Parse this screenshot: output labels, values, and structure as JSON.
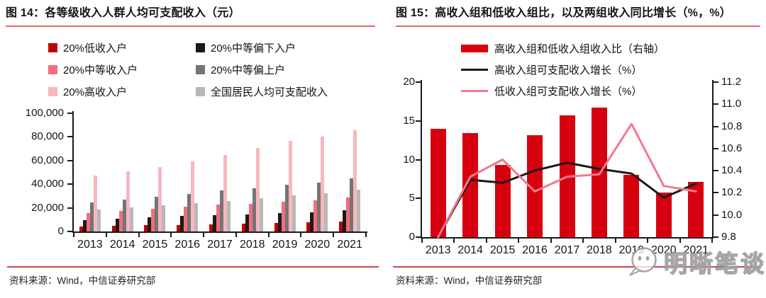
{
  "panels": {
    "left": {
      "title": "图 14：各等级收入人群人均可支配收入（元）",
      "source": "资料来源：Wind，中信证券研究部",
      "legend": [
        {
          "label": "20%低收入户",
          "color": "#c00000",
          "shape": "square"
        },
        {
          "label": "20%中等偏下入户",
          "color": "#1a1a1a",
          "shape": "square"
        },
        {
          "label": "20%中等收入户",
          "color": "#f26d7d",
          "shape": "square"
        },
        {
          "label": "20%中等偏上户",
          "color": "#757575",
          "shape": "square"
        },
        {
          "label": "20%高收入户",
          "color": "#f6b8bd",
          "shape": "square"
        },
        {
          "label": "全国居民人均可支配收入",
          "color": "#b8b8b8",
          "shape": "square"
        }
      ]
    },
    "right": {
      "title": "图 15：高收入组和低收入组比，以及两组收入同比增长（%，%）",
      "source": "资料来源：Wind，中信证券研究部",
      "legend": [
        {
          "label": "高收入组和低收入组收入比（右轴）",
          "color": "#d7000f",
          "shape": "bar"
        },
        {
          "label": "高收入组可支配收入增长（%）",
          "color": "#1a1a1a",
          "shape": "line"
        },
        {
          "label": "低收入组可支配收入增长（%）",
          "color": "#f4788c",
          "shape": "line"
        }
      ]
    }
  },
  "watermark": {
    "text": "明晰笔谈",
    "icon": "wechat-chat-bubble-icon"
  },
  "chart_data": [
    {
      "type": "bar",
      "title": "各等级收入人群人均可支配收入（元）",
      "categories": [
        "2013",
        "2014",
        "2015",
        "2016",
        "2017",
        "2018",
        "2019",
        "2020",
        "2021"
      ],
      "series": [
        {
          "name": "20%低收入户",
          "color": "#c00000",
          "values": [
            4402,
            4747,
            5221,
            5529,
            5958,
            6440,
            7380,
            7869,
            8333
          ]
        },
        {
          "name": "20%中等偏下入户",
          "color": "#1a1a1a",
          "values": [
            9654,
            10887,
            11894,
            12899,
            13843,
            14361,
            15777,
            16443,
            17949
          ]
        },
        {
          "name": "20%中等收入户",
          "color": "#f26d7d",
          "values": [
            15698,
            17631,
            19320,
            20924,
            22495,
            23189,
            25035,
            26249,
            28567
          ]
        },
        {
          "name": "20%中等偏上户",
          "color": "#757575",
          "values": [
            24361,
            26937,
            29438,
            31990,
            34547,
            36471,
            39230,
            41172,
            44949
          ]
        },
        {
          "name": "20%高收入户",
          "color": "#f6b8bd",
          "values": [
            47457,
            50968,
            54544,
            59259,
            64934,
            70640,
            76401,
            80294,
            85836
          ]
        },
        {
          "name": "全国居民人均可支配收入",
          "color": "#b8b8b8",
          "values": [
            18311,
            20167,
            21966,
            23821,
            25974,
            28228,
            30733,
            32189,
            35128
          ]
        }
      ],
      "xlabel": "",
      "ylabel": "",
      "ylim": [
        0,
        100000
      ],
      "yticks": [
        0,
        20000,
        40000,
        60000,
        80000,
        100000
      ],
      "grid": false,
      "legend_position": "top"
    },
    {
      "type": "bar+line",
      "title": "高收入组和低收入组比，以及两组收入同比增长（%，%）",
      "categories": [
        "2013",
        "2014",
        "2015",
        "2016",
        "2017",
        "2018",
        "2019",
        "2020",
        "2021"
      ],
      "bars": {
        "name": "高收入组和低收入组收入比（右轴）",
        "axis": "right",
        "color": "#d7000f",
        "values": [
          10.78,
          10.74,
          10.45,
          10.72,
          10.9,
          10.97,
          10.36,
          10.2,
          10.3
        ]
      },
      "lines": [
        {
          "name": "高收入组可支配收入增长（%）",
          "axis": "left",
          "color": "#1a1a1a",
          "values": [
            0,
            7.4,
            7.0,
            8.6,
            9.6,
            8.8,
            8.2,
            5.1,
            6.9
          ]
        },
        {
          "name": "低收入组可支配收入增长（%）",
          "axis": "left",
          "color": "#f4788c",
          "values": [
            0,
            7.8,
            10.0,
            5.9,
            7.8,
            8.1,
            14.6,
            6.6,
            5.9
          ]
        }
      ],
      "left_ylim": [
        0,
        20
      ],
      "left_yticks": [
        0,
        5,
        10,
        15,
        20
      ],
      "right_ylim": [
        9.8,
        11.2
      ],
      "right_yticks": [
        9.8,
        10.0,
        10.2,
        10.4,
        10.6,
        10.8,
        11.0,
        11.2
      ],
      "grid": false,
      "legend_position": "top"
    }
  ]
}
